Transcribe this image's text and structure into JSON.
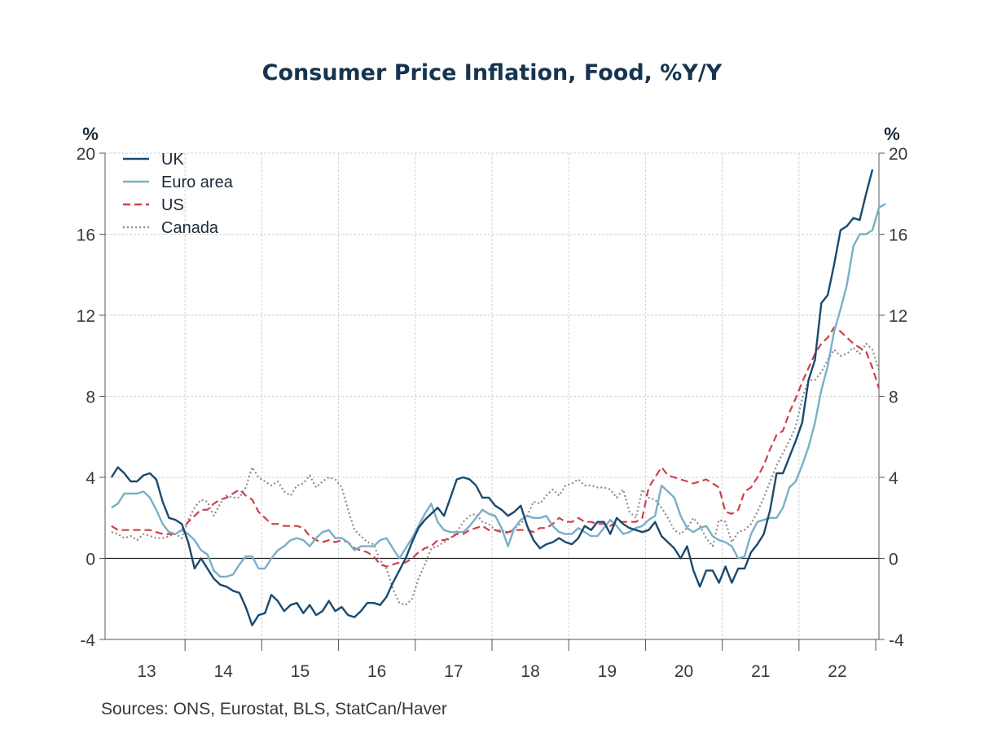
{
  "chart_data": {
    "type": "line",
    "title": "Consumer Price Inflation, Food, %Y/Y",
    "ylabel_left": "%",
    "ylabel_right": "%",
    "ylim": [
      -4,
      20
    ],
    "yticks": [
      -4,
      0,
      4,
      8,
      12,
      16,
      20
    ],
    "x_tick_labels": [
      "13",
      "14",
      "15",
      "16",
      "17",
      "18",
      "19",
      "20",
      "21",
      "22"
    ],
    "x_start": "2013-01",
    "x_end": "2022-12",
    "legend_position": "top-left",
    "source": "Sources:  ONS, Eurostat, BLS, StatCan/Haver",
    "grid": true,
    "series": [
      {
        "name": "UK",
        "color": "#1b4a6e",
        "style": "solid",
        "values": [
          4.0,
          4.5,
          4.2,
          3.8,
          3.8,
          4.1,
          4.2,
          3.9,
          2.8,
          2.0,
          1.9,
          1.7,
          0.8,
          -0.5,
          0.0,
          -0.5,
          -1.0,
          -1.3,
          -1.4,
          -1.6,
          -1.7,
          -2.4,
          -3.3,
          -2.8,
          -2.7,
          -1.8,
          -2.1,
          -2.6,
          -2.3,
          -2.2,
          -2.7,
          -2.3,
          -2.8,
          -2.6,
          -2.1,
          -2.6,
          -2.4,
          -2.8,
          -2.9,
          -2.6,
          -2.2,
          -2.2,
          -2.3,
          -1.9,
          -1.2,
          -0.6,
          0.0,
          0.8,
          1.5,
          1.9,
          2.2,
          2.5,
          2.1,
          3.0,
          3.9,
          4.0,
          3.9,
          3.6,
          3.0,
          3.0,
          2.6,
          2.4,
          2.1,
          2.3,
          2.6,
          1.6,
          0.9,
          0.5,
          0.7,
          0.8,
          1.0,
          0.8,
          0.7,
          1.0,
          1.6,
          1.4,
          1.8,
          1.8,
          1.2,
          2.0,
          1.7,
          1.5,
          1.4,
          1.3,
          1.4,
          1.8,
          1.1,
          0.8,
          0.5,
          0.0,
          0.6,
          -0.6,
          -1.4,
          -0.6,
          -0.6,
          -1.2,
          -0.4,
          -1.2,
          -0.5,
          -0.5,
          0.3,
          0.7,
          1.2,
          2.4,
          4.2,
          4.2,
          5.0,
          5.8,
          6.7,
          8.8,
          9.8,
          12.6,
          13.0,
          14.5,
          16.2,
          16.4,
          16.8,
          16.7,
          18.0,
          19.2
        ]
      },
      {
        "name": "Euro area",
        "color": "#7aafc8",
        "style": "solid",
        "values": [
          2.5,
          2.7,
          3.2,
          3.2,
          3.2,
          3.3,
          3.0,
          2.4,
          1.7,
          1.3,
          1.2,
          1.4,
          1.2,
          0.9,
          0.4,
          0.2,
          -0.6,
          -0.9,
          -0.9,
          -0.8,
          -0.3,
          0.1,
          0.1,
          -0.5,
          -0.5,
          0.0,
          0.4,
          0.6,
          0.9,
          1.0,
          0.9,
          0.6,
          1.0,
          1.3,
          1.4,
          1.0,
          1.0,
          0.8,
          0.4,
          0.6,
          0.6,
          0.6,
          0.9,
          1.0,
          0.5,
          0.0,
          0.5,
          1.0,
          1.6,
          2.2,
          2.7,
          1.8,
          1.4,
          1.3,
          1.3,
          1.3,
          1.6,
          2.0,
          2.4,
          2.2,
          2.1,
          1.5,
          0.6,
          1.5,
          1.9,
          2.1,
          2.0,
          2.0,
          2.1,
          1.6,
          1.3,
          1.2,
          1.2,
          1.5,
          1.3,
          1.1,
          1.1,
          1.5,
          1.9,
          1.6,
          1.2,
          1.3,
          1.5,
          1.6,
          1.9,
          2.1,
          3.6,
          3.3,
          3.0,
          2.1,
          1.5,
          1.3,
          1.5,
          1.6,
          1.1,
          0.9,
          0.8,
          0.6,
          0.0,
          0.1,
          1.2,
          1.8,
          1.9,
          2.0,
          2.0,
          2.5,
          3.5,
          3.8,
          4.6,
          5.5,
          6.7,
          8.3,
          9.5,
          11.2,
          12.3,
          13.5,
          15.4,
          16.0,
          16.0,
          16.2,
          17.3,
          17.5
        ]
      },
      {
        "name": "US",
        "color": "#d0404a",
        "style": "dashed",
        "values": [
          1.6,
          1.4,
          1.4,
          1.4,
          1.4,
          1.4,
          1.4,
          1.3,
          1.2,
          1.2,
          1.2,
          1.4,
          1.8,
          2.1,
          2.4,
          2.4,
          2.7,
          2.9,
          3.0,
          3.2,
          3.4,
          3.1,
          2.9,
          2.3,
          2.0,
          1.7,
          1.7,
          1.6,
          1.6,
          1.6,
          1.5,
          1.1,
          0.9,
          0.8,
          0.9,
          0.8,
          0.9,
          0.8,
          0.5,
          0.4,
          0.3,
          0.1,
          -0.3,
          -0.4,
          -0.3,
          -0.2,
          -0.2,
          0.0,
          0.3,
          0.5,
          0.6,
          0.9,
          0.9,
          1.0,
          1.2,
          1.2,
          1.4,
          1.5,
          1.6,
          1.4,
          1.4,
          1.3,
          1.3,
          1.4,
          1.4,
          1.4,
          1.3,
          1.5,
          1.5,
          1.7,
          2.0,
          1.8,
          1.8,
          2.0,
          1.8,
          1.8,
          1.7,
          1.7,
          1.6,
          1.8,
          1.8,
          1.8,
          1.8,
          2.0,
          3.5,
          4.0,
          4.5,
          4.1,
          4.0,
          3.9,
          3.8,
          3.7,
          3.8,
          3.9,
          3.7,
          3.5,
          2.3,
          2.2,
          2.4,
          3.3,
          3.5,
          4.0,
          4.6,
          5.4,
          6.1,
          6.3,
          7.2,
          7.9,
          8.7,
          9.4,
          10.1,
          10.6,
          10.9,
          11.4,
          11.2,
          10.9,
          10.6,
          10.4,
          10.2,
          9.4,
          8.4
        ]
      },
      {
        "name": "Canada",
        "color": "#8d8d8d",
        "style": "dotted",
        "values": [
          1.3,
          1.2,
          1.0,
          1.1,
          0.9,
          1.2,
          1.1,
          1.0,
          1.0,
          1.1,
          1.2,
          1.0,
          1.9,
          2.5,
          2.9,
          2.8,
          2.1,
          2.7,
          3.1,
          3.0,
          3.0,
          3.5,
          4.5,
          4.0,
          3.8,
          3.6,
          3.8,
          3.3,
          3.1,
          3.6,
          3.7,
          4.1,
          3.5,
          3.8,
          4.0,
          3.9,
          3.5,
          2.4,
          1.4,
          1.1,
          0.8,
          0.7,
          -0.1,
          -0.5,
          -1.5,
          -2.2,
          -2.3,
          -2.0,
          -1.0,
          -0.3,
          0.5,
          0.6,
          0.8,
          1.0,
          1.3,
          1.8,
          2.1,
          2.2,
          1.8,
          1.7,
          1.4,
          1.4,
          1.2,
          1.5,
          1.7,
          2.1,
          2.8,
          2.7,
          3.1,
          3.4,
          3.1,
          3.6,
          3.7,
          3.9,
          3.6,
          3.6,
          3.5,
          3.5,
          3.4,
          3.0,
          3.4,
          2.3,
          2.0,
          3.4,
          3.0,
          2.9,
          2.5,
          2.0,
          1.4,
          1.2,
          1.5,
          2.0,
          1.6,
          1.0,
          0.6,
          1.9,
          1.8,
          0.8,
          1.3,
          1.4,
          1.7,
          2.3,
          3.0,
          3.8,
          4.6,
          5.2,
          5.8,
          6.5,
          7.9,
          8.8,
          8.8,
          9.2,
          9.8,
          10.3,
          10.0,
          10.1,
          10.4,
          10.1,
          10.6,
          10.3,
          9.3
        ]
      }
    ]
  }
}
